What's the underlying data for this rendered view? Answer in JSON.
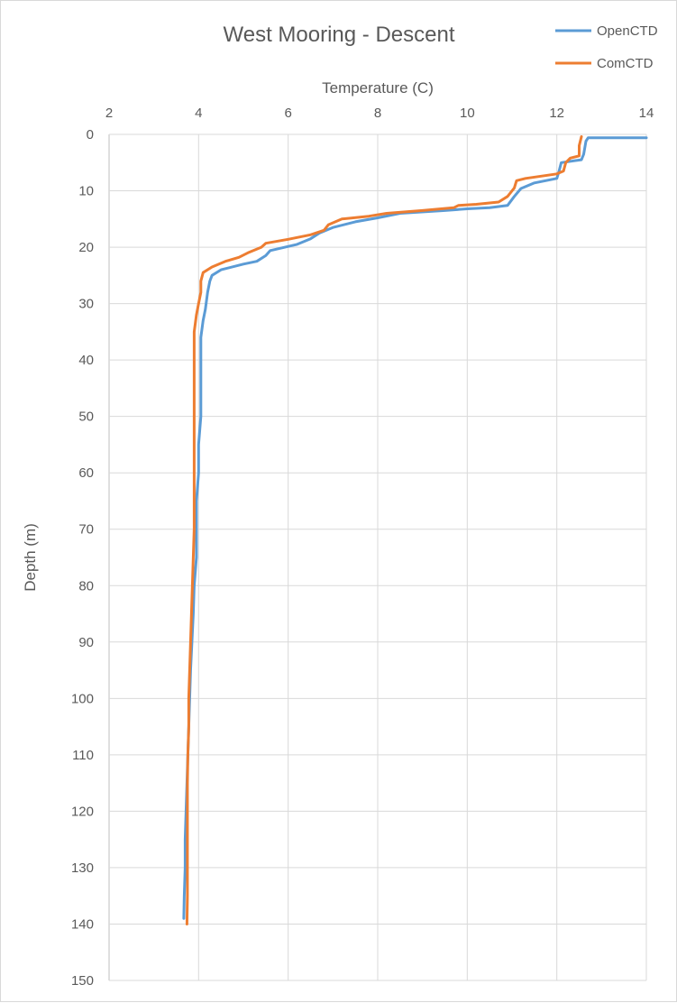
{
  "chart_data": {
    "type": "line",
    "title": "West Mooring - Descent",
    "xlabel": "Temperature (C)",
    "ylabel": "Depth (m)",
    "xlim": [
      2,
      14
    ],
    "ylim": [
      0,
      150
    ],
    "y_inverted": true,
    "x_axis_position": "top",
    "grid": true,
    "legend_position": "top-right",
    "x_ticks": [
      2,
      4,
      6,
      8,
      10,
      12,
      14
    ],
    "y_ticks": [
      0,
      10,
      20,
      30,
      40,
      50,
      60,
      70,
      80,
      90,
      100,
      110,
      120,
      130,
      140,
      150
    ],
    "series": [
      {
        "name": "OpenCTD",
        "color": "#5B9BD5",
        "points": [
          [
            14.0,
            0.6
          ],
          [
            12.7,
            0.6
          ],
          [
            12.65,
            1.2
          ],
          [
            12.6,
            3.5
          ],
          [
            12.55,
            4.5
          ],
          [
            12.1,
            5.0
          ],
          [
            12.05,
            6.5
          ],
          [
            12.0,
            7.8
          ],
          [
            11.5,
            8.6
          ],
          [
            11.2,
            9.6
          ],
          [
            11.05,
            11.0
          ],
          [
            10.9,
            12.6
          ],
          [
            10.5,
            13.0
          ],
          [
            10.0,
            13.2
          ],
          [
            9.5,
            13.5
          ],
          [
            8.5,
            14.0
          ],
          [
            8.0,
            14.8
          ],
          [
            7.5,
            15.5
          ],
          [
            7.0,
            16.5
          ],
          [
            6.7,
            17.5
          ],
          [
            6.5,
            18.5
          ],
          [
            6.2,
            19.5
          ],
          [
            5.6,
            20.6
          ],
          [
            5.5,
            21.5
          ],
          [
            5.3,
            22.5
          ],
          [
            5.0,
            23.0
          ],
          [
            4.5,
            24.0
          ],
          [
            4.3,
            25.0
          ],
          [
            4.25,
            26.0
          ],
          [
            4.2,
            28.0
          ],
          [
            4.15,
            31.0
          ],
          [
            4.1,
            33.0
          ],
          [
            4.05,
            36.0
          ],
          [
            4.05,
            40.0
          ],
          [
            4.05,
            45.0
          ],
          [
            4.05,
            50.0
          ],
          [
            4.0,
            55.0
          ],
          [
            4.0,
            60.0
          ],
          [
            3.95,
            65.0
          ],
          [
            3.95,
            70.0
          ],
          [
            3.95,
            75.0
          ],
          [
            3.9,
            80.0
          ],
          [
            3.88,
            85.0
          ],
          [
            3.85,
            90.0
          ],
          [
            3.82,
            95.0
          ],
          [
            3.8,
            100.0
          ],
          [
            3.78,
            105.0
          ],
          [
            3.76,
            110.0
          ],
          [
            3.74,
            115.0
          ],
          [
            3.72,
            120.0
          ],
          [
            3.7,
            125.0
          ],
          [
            3.7,
            130.0
          ],
          [
            3.68,
            135.0
          ],
          [
            3.67,
            139.0
          ]
        ]
      },
      {
        "name": "ComCTD",
        "color": "#ED7D31",
        "points": [
          [
            12.55,
            0.4
          ],
          [
            12.5,
            2.0
          ],
          [
            12.5,
            3.8
          ],
          [
            12.3,
            4.2
          ],
          [
            12.2,
            5.0
          ],
          [
            12.15,
            6.5
          ],
          [
            12.0,
            7.0
          ],
          [
            11.3,
            7.8
          ],
          [
            11.1,
            8.2
          ],
          [
            11.05,
            9.5
          ],
          [
            10.9,
            11.0
          ],
          [
            10.7,
            12.0
          ],
          [
            10.2,
            12.4
          ],
          [
            9.8,
            12.6
          ],
          [
            9.7,
            13.0
          ],
          [
            9.0,
            13.5
          ],
          [
            8.2,
            14.0
          ],
          [
            7.8,
            14.5
          ],
          [
            7.2,
            15.0
          ],
          [
            6.9,
            16.0
          ],
          [
            6.8,
            17.0
          ],
          [
            6.5,
            17.8
          ],
          [
            6.0,
            18.6
          ],
          [
            5.5,
            19.3
          ],
          [
            5.4,
            20.0
          ],
          [
            5.1,
            21.0
          ],
          [
            4.9,
            21.8
          ],
          [
            4.6,
            22.5
          ],
          [
            4.3,
            23.5
          ],
          [
            4.1,
            24.5
          ],
          [
            4.05,
            26.0
          ],
          [
            4.05,
            28.0
          ],
          [
            4.0,
            30.0
          ],
          [
            3.95,
            32.0
          ],
          [
            3.9,
            35.0
          ],
          [
            3.9,
            40.0
          ],
          [
            3.9,
            45.0
          ],
          [
            3.9,
            50.0
          ],
          [
            3.9,
            55.0
          ],
          [
            3.9,
            60.0
          ],
          [
            3.9,
            65.0
          ],
          [
            3.9,
            70.0
          ],
          [
            3.88,
            75.0
          ],
          [
            3.86,
            80.0
          ],
          [
            3.84,
            85.0
          ],
          [
            3.82,
            90.0
          ],
          [
            3.8,
            95.0
          ],
          [
            3.78,
            100.0
          ],
          [
            3.78,
            105.0
          ],
          [
            3.76,
            110.0
          ],
          [
            3.75,
            115.0
          ],
          [
            3.75,
            120.0
          ],
          [
            3.75,
            125.0
          ],
          [
            3.75,
            130.0
          ],
          [
            3.75,
            135.0
          ],
          [
            3.74,
            140.0
          ]
        ]
      }
    ]
  }
}
